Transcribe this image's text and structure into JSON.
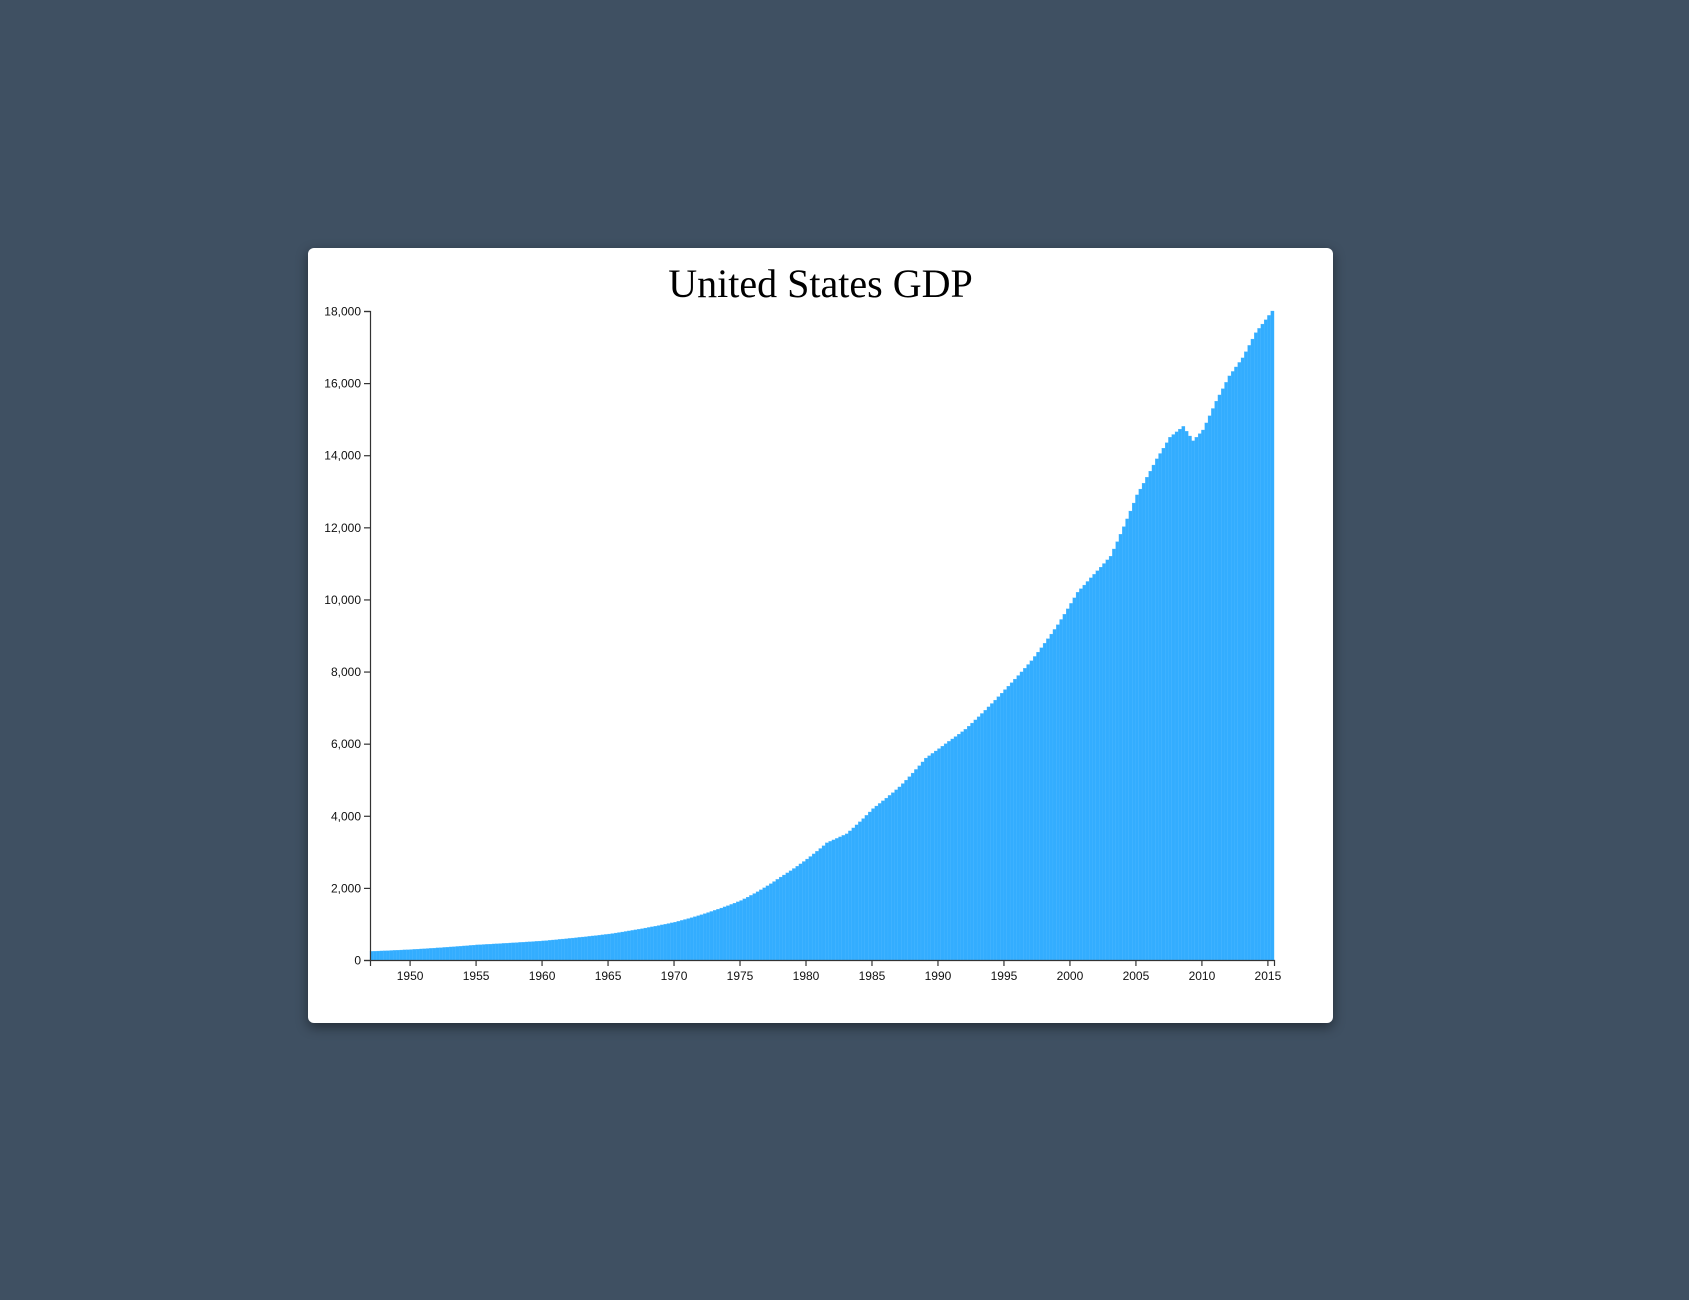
{
  "chart_data": {
    "type": "bar",
    "title": "United States GDP",
    "xlabel": "",
    "ylabel": "",
    "ylim": [
      0,
      18000
    ],
    "xlim": [
      1947,
      2015.5
    ],
    "y_ticks": [
      0,
      2000,
      4000,
      6000,
      8000,
      10000,
      12000,
      14000,
      16000,
      18000
    ],
    "y_tick_labels": [
      "0",
      "2,000",
      "4,000",
      "6,000",
      "8,000",
      "10,000",
      "12,000",
      "14,000",
      "16,000",
      "18,000"
    ],
    "x_ticks": [
      1950,
      1955,
      1960,
      1965,
      1970,
      1975,
      1980,
      1985,
      1990,
      1995,
      2000,
      2005,
      2010,
      2015
    ],
    "x_tick_labels": [
      "1950",
      "1955",
      "1960",
      "1965",
      "1970",
      "1975",
      "1980",
      "1985",
      "1990",
      "1995",
      "2000",
      "2005",
      "2010",
      "2015"
    ],
    "frequency": "quarterly",
    "first_period": 1947,
    "bar_color": "#33adff",
    "grid": false,
    "anchor_years": [
      1947,
      1950,
      1955,
      1960,
      1965,
      1970,
      1975,
      1978,
      1980,
      1981.5,
      1983,
      1985,
      1987,
      1989,
      1990.5,
      1992,
      1995,
      1997,
      1999,
      2000.5,
      2001.5,
      2003,
      2005,
      2006.5,
      2007.5,
      2008.5,
      2009.25,
      2010,
      2011,
      2012,
      2013,
      2014,
      2015.25
    ],
    "anchor_values": [
      240,
      290,
      420,
      530,
      720,
      1050,
      1650,
      2300,
      2800,
      3250,
      3500,
      4200,
      4800,
      5600,
      6000,
      6400,
      7500,
      8300,
      9300,
      10200,
      10600,
      11200,
      12900,
      13900,
      14500,
      14800,
      14400,
      14700,
      15500,
      16200,
      16700,
      17400,
      18000
    ]
  }
}
